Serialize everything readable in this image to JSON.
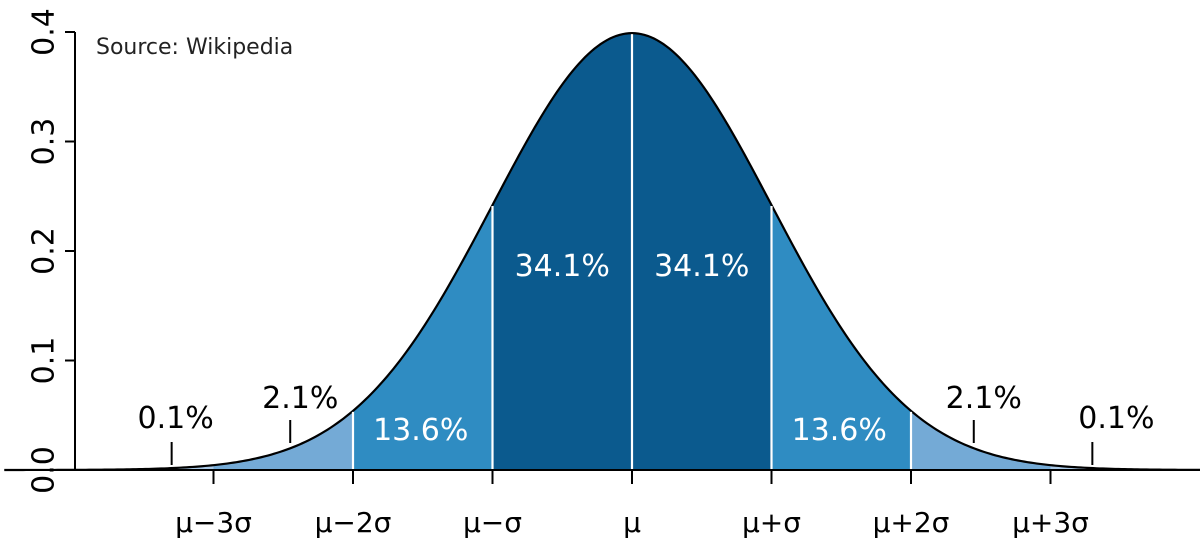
{
  "source_note": "Source: Wikipedia",
  "colors": {
    "inner": "#0b5a8e",
    "middle": "#2f8cc2",
    "outer": "#74aad6",
    "far": "#a9c8e6",
    "curve": "#000000",
    "divider": "#ffffff"
  },
  "chart_data": {
    "type": "area",
    "distribution": "normal",
    "mean": 0,
    "sd": 1,
    "xlim": [
      -4.5,
      4.5
    ],
    "ylim": [
      0,
      0.4
    ],
    "y_ticks": [
      "0.0",
      "0.1",
      "0.2",
      "0.3",
      "0.4"
    ],
    "x_ticks": [
      {
        "x": -3,
        "label": "μ−3σ"
      },
      {
        "x": -2,
        "label": "μ−2σ"
      },
      {
        "x": -1,
        "label": "μ−σ"
      },
      {
        "x": 0,
        "label": "μ"
      },
      {
        "x": 1,
        "label": "μ+σ"
      },
      {
        "x": 2,
        "label": "μ+2σ"
      },
      {
        "x": 3,
        "label": "μ+3σ"
      }
    ],
    "regions": [
      {
        "from": -3,
        "to": -2,
        "percent": "2.1%",
        "shade": "outer"
      },
      {
        "from": -2,
        "to": -1,
        "percent": "13.6%",
        "shade": "middle"
      },
      {
        "from": -1,
        "to": 0,
        "percent": "34.1%",
        "shade": "inner"
      },
      {
        "from": 0,
        "to": 1,
        "percent": "34.1%",
        "shade": "inner"
      },
      {
        "from": 1,
        "to": 2,
        "percent": "13.6%",
        "shade": "middle"
      },
      {
        "from": 2,
        "to": 3,
        "percent": "2.1%",
        "shade": "outer"
      }
    ],
    "tail_labels": [
      {
        "x": -3.3,
        "percent": "0.1%"
      },
      {
        "x": 3.3,
        "percent": "0.1%"
      }
    ],
    "grid": false,
    "legend": "none"
  }
}
